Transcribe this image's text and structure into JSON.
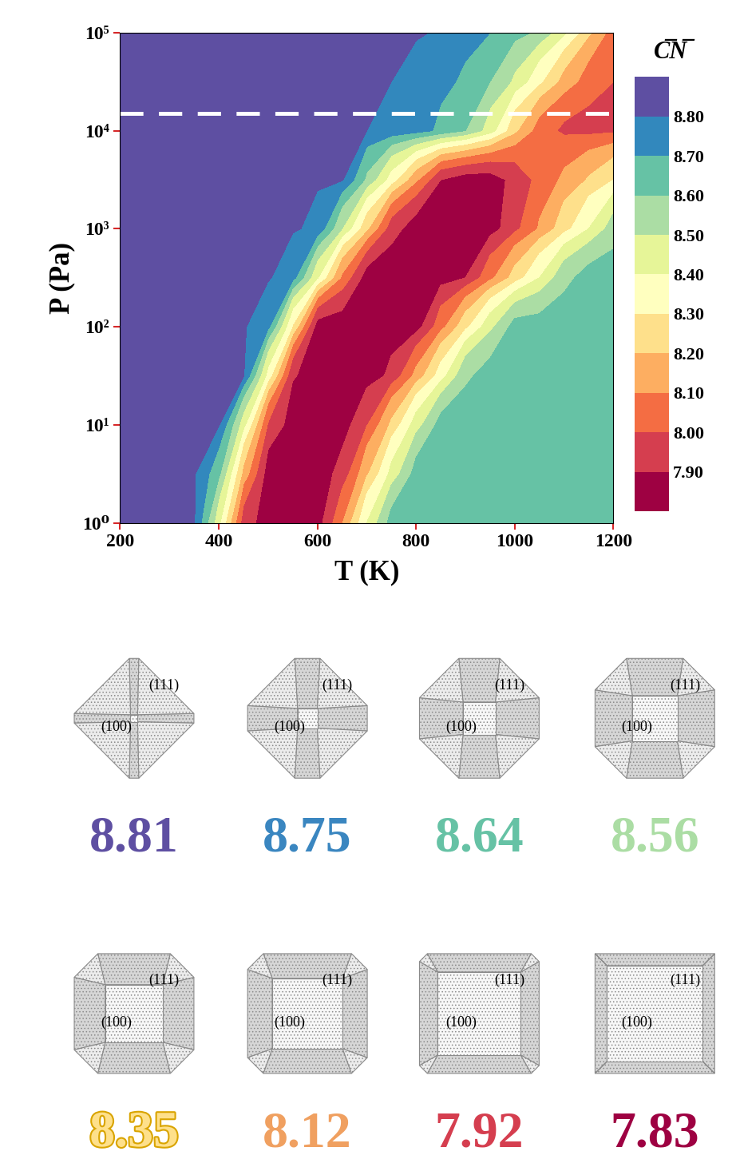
{
  "chart_data": {
    "type": "contour",
    "x_label": "T (K)",
    "y_label": "P (Pa)",
    "log": "y",
    "xlim": [
      200,
      1200
    ],
    "xticks": [
      200,
      400,
      600,
      800,
      1000,
      1200
    ],
    "ylim": [
      1,
      100000
    ],
    "yticks": [
      {
        "value": 1,
        "label": "10⁰"
      },
      {
        "value": 10,
        "label": "10¹"
      },
      {
        "value": 100,
        "label": "10²"
      },
      {
        "value": 1000,
        "label": "10³"
      },
      {
        "value": 10000,
        "label": "10⁴"
      },
      {
        "value": 100000,
        "label": "10⁵"
      }
    ],
    "x": [
      200,
      250,
      300,
      350,
      400,
      450,
      500,
      550,
      600,
      650,
      700,
      750,
      800,
      850,
      900,
      950,
      1000,
      1050,
      1100,
      1150,
      1200
    ],
    "y": [
      1,
      3.16,
      10,
      31.6,
      100,
      316,
      1000,
      3160,
      10000,
      31600,
      100000
    ],
    "cells": [
      [
        8.81,
        8.81,
        8.81,
        8.81,
        8.43,
        7.95,
        7.85,
        7.85,
        7.85,
        8.09,
        8.4,
        8.64,
        8.64,
        8.64,
        8.64,
        8.64,
        8.64,
        8.64,
        8.64,
        8.64,
        8.64
      ],
      [
        8.81,
        8.81,
        8.81,
        8.81,
        8.63,
        8.17,
        7.85,
        7.85,
        7.85,
        7.93,
        8.18,
        8.43,
        8.64,
        8.64,
        8.64,
        8.64,
        8.64,
        8.64,
        8.64,
        8.64,
        8.64
      ],
      [
        8.81,
        8.81,
        8.81,
        8.81,
        8.81,
        8.44,
        7.99,
        7.85,
        7.85,
        7.85,
        7.99,
        8.22,
        8.45,
        8.64,
        8.64,
        8.64,
        8.64,
        8.64,
        8.64,
        8.64,
        8.64
      ],
      [
        8.81,
        8.81,
        8.81,
        8.81,
        8.81,
        8.81,
        8.36,
        7.91,
        7.85,
        7.85,
        7.85,
        7.92,
        8.13,
        8.35,
        8.58,
        8.64,
        8.64,
        8.64,
        8.64,
        8.64,
        8.64
      ],
      [
        8.81,
        8.81,
        8.81,
        8.81,
        8.81,
        8.81,
        8.73,
        8.29,
        7.85,
        7.85,
        7.85,
        7.85,
        7.85,
        8.06,
        8.27,
        8.47,
        8.64,
        8.64,
        8.64,
        8.64,
        8.64
      ],
      [
        8.81,
        8.81,
        8.81,
        8.81,
        8.81,
        8.81,
        8.81,
        8.74,
        8.41,
        8.08,
        7.85,
        7.85,
        7.85,
        7.85,
        7.9,
        8.07,
        8.24,
        8.4,
        8.57,
        8.64,
        8.64
      ],
      [
        8.81,
        8.81,
        8.81,
        8.81,
        8.81,
        8.81,
        8.81,
        8.81,
        8.78,
        8.5,
        8.22,
        7.94,
        7.85,
        7.85,
        7.85,
        7.85,
        7.97,
        8.11,
        8.26,
        8.4,
        8.55
      ],
      [
        8.81,
        8.81,
        8.81,
        8.81,
        8.81,
        8.81,
        8.81,
        8.81,
        8.81,
        8.81,
        8.58,
        8.35,
        8.12,
        7.9,
        7.85,
        7.85,
        7.93,
        8.03,
        8.12,
        8.21,
        8.3
      ],
      [
        8.81,
        8.81,
        8.81,
        8.81,
        8.81,
        8.81,
        8.81,
        8.81,
        8.81,
        8.81,
        8.8,
        8.77,
        8.74,
        8.68,
        8.6,
        8.45,
        8.22,
        8.05,
        7.98,
        7.97,
        7.98
      ],
      [
        8.81,
        8.81,
        8.81,
        8.81,
        8.81,
        8.81,
        8.81,
        8.81,
        8.81,
        8.81,
        8.81,
        8.8,
        8.77,
        8.73,
        8.68,
        8.6,
        8.48,
        8.32,
        8.16,
        8.05,
        8.0
      ],
      [
        8.81,
        8.81,
        8.81,
        8.81,
        8.81,
        8.81,
        8.81,
        8.81,
        8.81,
        8.81,
        8.81,
        8.81,
        8.81,
        8.79,
        8.75,
        8.7,
        8.64,
        8.58,
        8.42,
        8.22,
        8.05
      ]
    ],
    "colorbar": {
      "label": "C̅N̅",
      "range": [
        7.8,
        8.9
      ],
      "levels": [
        7.8,
        7.9,
        8.0,
        8.1,
        8.2,
        8.3,
        8.4,
        8.5,
        8.6,
        8.7,
        8.8,
        8.9
      ],
      "colors": [
        "#9e0142",
        "#d53e4f",
        "#f46d43",
        "#fdae61",
        "#fee08b",
        "#ffffbf",
        "#e6f598",
        "#abdda4",
        "#66c2a5",
        "#3288bd",
        "#5e4fa2"
      ],
      "ticks": [
        {
          "value": 7.9,
          "label": "7.90"
        },
        {
          "value": 8.0,
          "label": "8.00"
        },
        {
          "value": 8.1,
          "label": "8.10"
        },
        {
          "value": 8.2,
          "label": "8.20"
        },
        {
          "value": 8.3,
          "label": "8.30"
        },
        {
          "value": 8.4,
          "label": "8.40"
        },
        {
          "value": 8.5,
          "label": "8.50"
        },
        {
          "value": 8.6,
          "label": "8.60"
        },
        {
          "value": 8.7,
          "label": "8.70"
        },
        {
          "value": 8.8,
          "label": "8.80"
        }
      ]
    },
    "reference_line": {
      "y": 15000,
      "color": "#ffffff",
      "line_style": "dashed"
    }
  },
  "shapes": [
    {
      "cn": 8.81,
      "color": "#5e4fa2",
      "facets": [
        "(111)",
        "(100)"
      ]
    },
    {
      "cn": 8.75,
      "color": "#3a86c0",
      "facets": [
        "(111)",
        "(100)"
      ]
    },
    {
      "cn": 8.64,
      "color": "#66c2a5",
      "facets": [
        "(111)",
        "(100)"
      ]
    },
    {
      "cn": 8.56,
      "color": "#abdda4",
      "facets": [
        "(111)",
        "(100)"
      ]
    },
    {
      "cn": 8.35,
      "color": "#fee08b",
      "facets": [
        "(111)",
        "(100)"
      ]
    },
    {
      "cn": 8.12,
      "color": "#f0a060",
      "facets": [
        "(111)",
        "(100)"
      ]
    },
    {
      "cn": 7.92,
      "color": "#d53e4f",
      "facets": [
        "(111)",
        "(100)"
      ]
    },
    {
      "cn": 7.83,
      "color": "#9e0142",
      "facets": [
        "(111)",
        "(100)"
      ]
    }
  ]
}
